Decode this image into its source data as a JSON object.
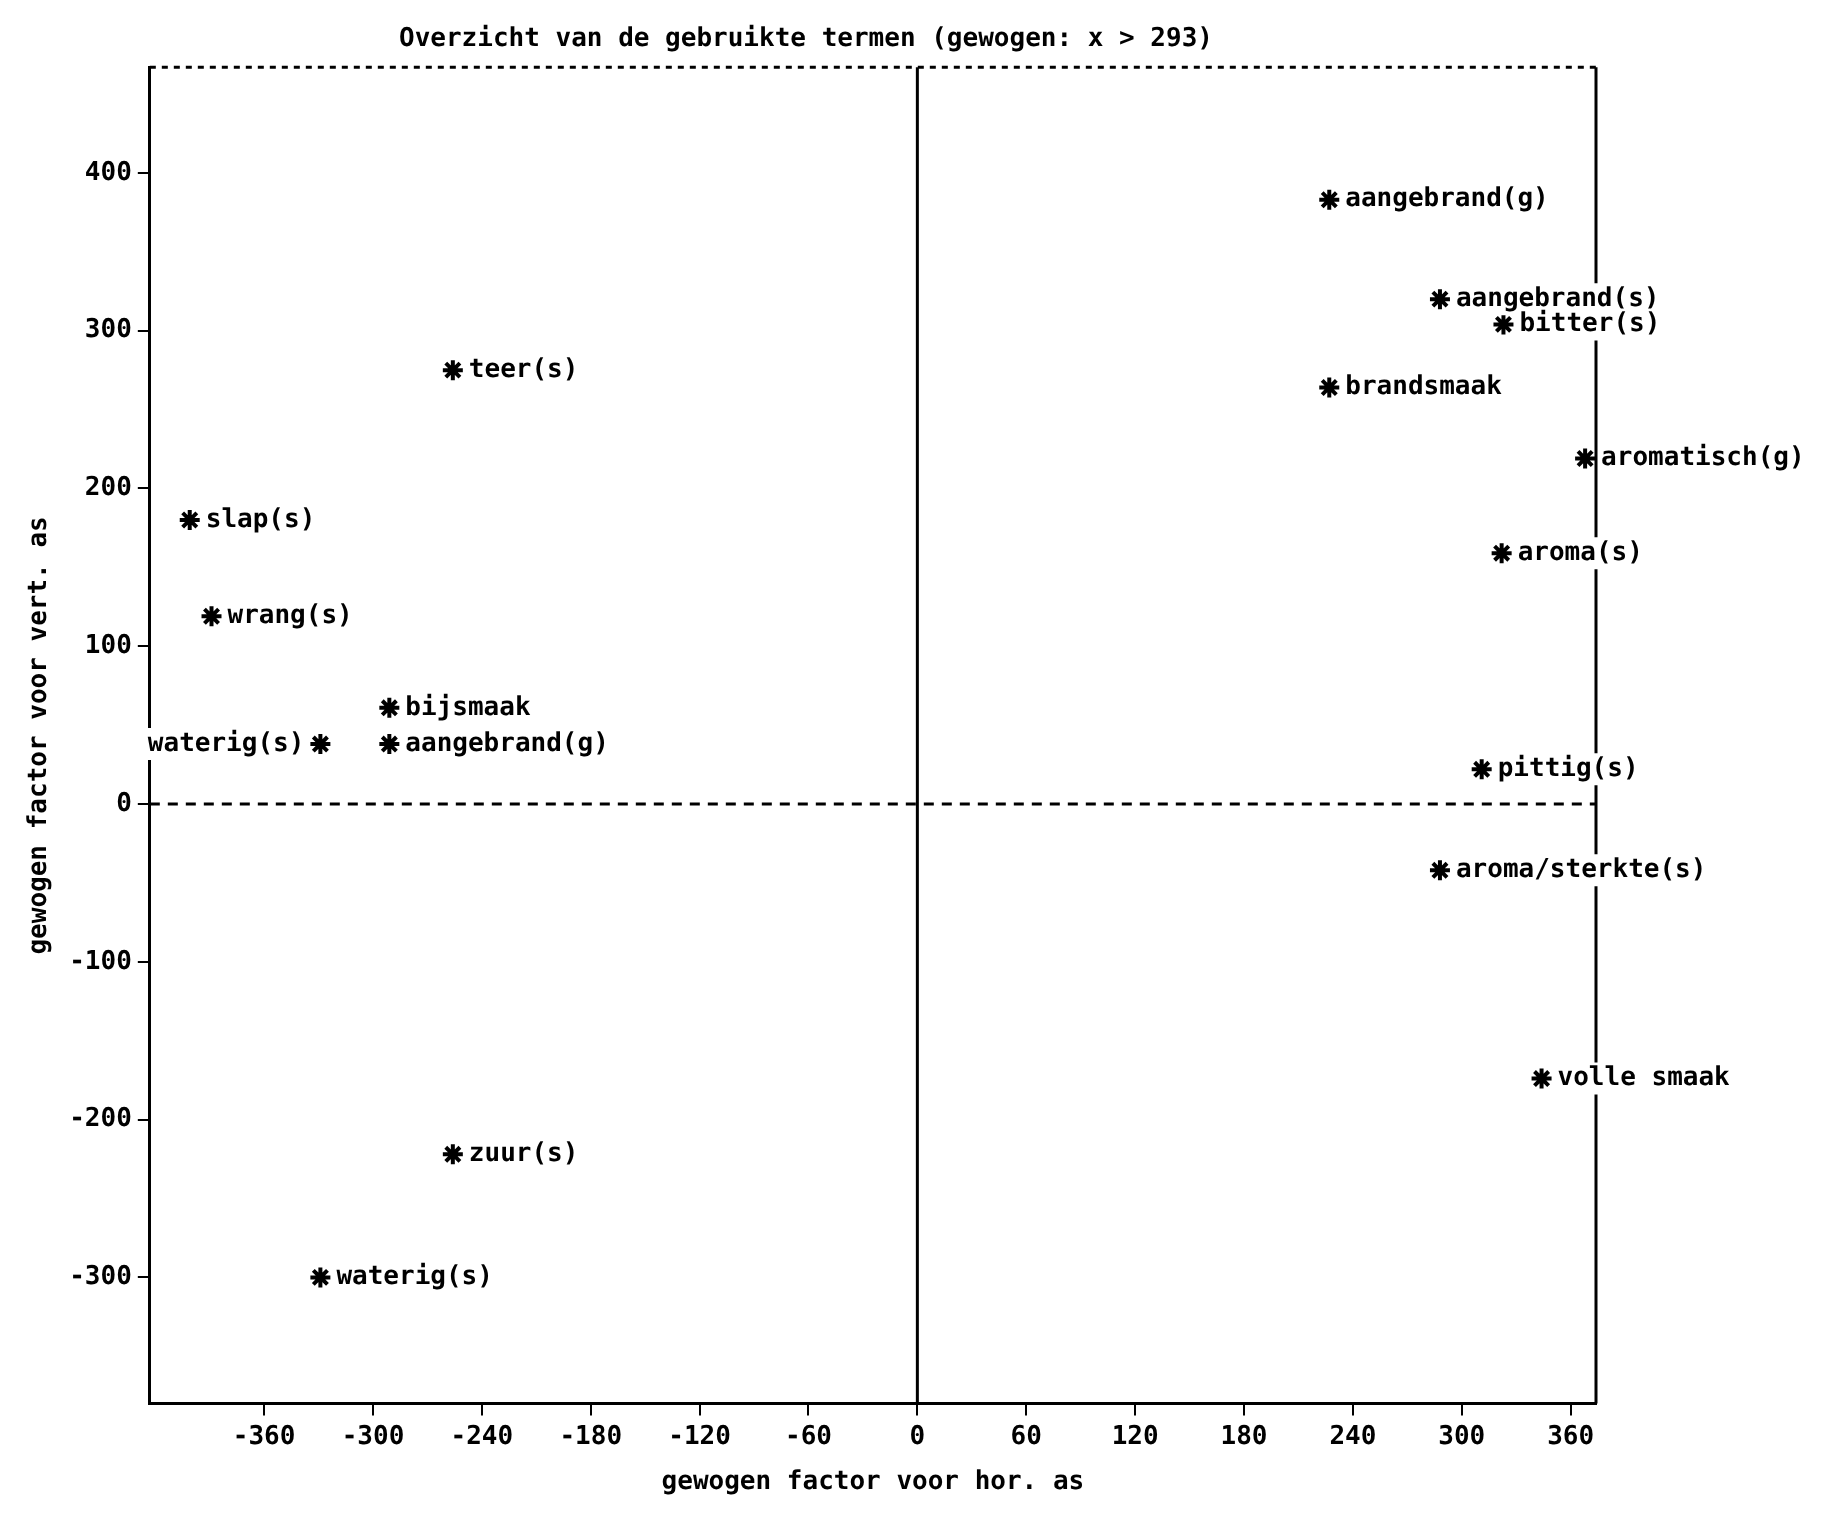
{
  "chart_data": {
    "type": "scatter",
    "title": "Overzicht van de gebruikte termen (gewogen: x > 293)",
    "xlabel": "gewogen factor voor hor. as",
    "ylabel": "gewogen factor voor vert. as",
    "xlim": [
      -423,
      374
    ],
    "xticks": [
      -360,
      -300,
      -240,
      -180,
      -120,
      -60,
      0,
      60,
      120,
      180,
      240,
      300,
      360
    ],
    "ylim": [
      -380,
      467
    ],
    "yticks": [
      -300,
      -200,
      -100,
      0,
      100,
      200,
      300,
      400
    ],
    "marker": "cross",
    "grid": false,
    "legend": false,
    "ref_lines": [
      {
        "axis": "y",
        "value": 0,
        "line_style": "dashed",
        "color": "#000000"
      },
      {
        "axis": "x",
        "value": 0,
        "line_style": "solid",
        "color": "#000000"
      }
    ],
    "series": [
      {
        "color": "#000000",
        "x": [
          -256,
          -401,
          -389,
          -291,
          -291,
          -329,
          -256,
          -329,
          227,
          288,
          323,
          227,
          368,
          322,
          311,
          288,
          344
        ],
        "values": [
          275,
          180,
          119,
          61,
          38,
          38,
          -222,
          -300,
          383,
          320,
          304,
          264,
          219,
          159,
          22,
          -42,
          -174
        ]
      }
    ],
    "annotations": [
      {
        "text": "teer(s)",
        "x": -256,
        "y": 275
      },
      {
        "text": "slap(s)",
        "x": -401,
        "y": 180
      },
      {
        "text": "wrang(s)",
        "x": -389,
        "y": 119
      },
      {
        "text": "bijsmaak",
        "x": -291,
        "y": 61
      },
      {
        "text": "aangebrand(g)",
        "x": -291,
        "y": 38
      },
      {
        "text": "waterig(s)",
        "x": -329,
        "y": 38
      },
      {
        "text": "zuur(s)",
        "x": -256,
        "y": -222
      },
      {
        "text": "waterig(s)",
        "x": -329,
        "y": -300
      },
      {
        "text": "aangebrand(g)",
        "x": 227,
        "y": 383
      },
      {
        "text": "aangebrand(s)",
        "x": 288,
        "y": 320
      },
      {
        "text": "bitter(s)",
        "x": 323,
        "y": 304
      },
      {
        "text": "brandsmaak",
        "x": 227,
        "y": 264
      },
      {
        "text": "aromatisch(g)",
        "x": 368,
        "y": 219
      },
      {
        "text": "aroma(s)",
        "x": 322,
        "y": 159
      },
      {
        "text": "pittig(s)",
        "x": 311,
        "y": 22
      },
      {
        "text": "aroma/sterkte(s)",
        "x": 288,
        "y": -42
      },
      {
        "text": "volle smaak",
        "x": 344,
        "y": -174
      }
    ]
  }
}
